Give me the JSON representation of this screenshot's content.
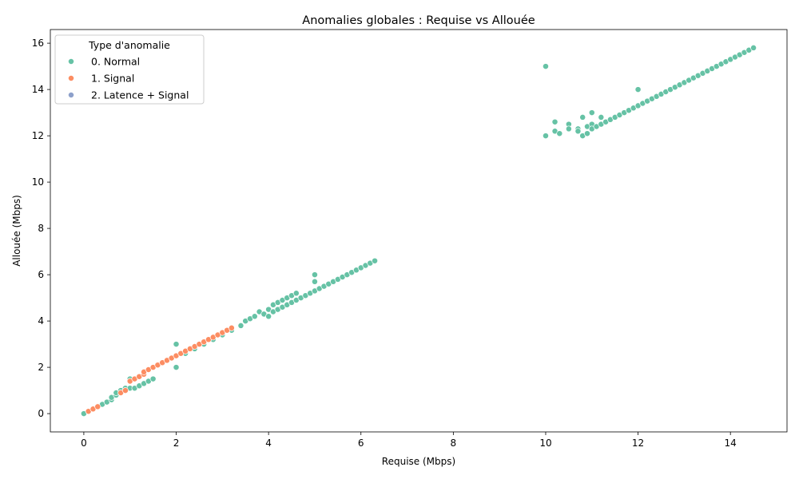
{
  "chart_data": {
    "type": "scatter",
    "title": "Anomalies globales : Requise vs Allouée",
    "xlabel": "Requise (Mbps)",
    "ylabel": "Allouée (Mbps)",
    "xlim": [
      -0.725,
      15.225
    ],
    "ylim": [
      -0.79,
      16.59
    ],
    "xticks": [
      0,
      2,
      4,
      6,
      8,
      10,
      12,
      14
    ],
    "yticks": [
      0,
      2,
      4,
      6,
      8,
      10,
      12,
      14,
      16
    ],
    "grid": false,
    "legend": {
      "title": "Type d'anomalie",
      "placement": "top-left",
      "entries": [
        {
          "label": "0. Normal",
          "color": "#66c2a5"
        },
        {
          "label": "1. Signal",
          "color": "#fc8d62"
        },
        {
          "label": "2. Latence + Signal",
          "color": "#8da0cb"
        }
      ]
    },
    "series": [
      {
        "name": "0. Normal",
        "color": "#66c2a5",
        "points": [
          [
            0,
            0
          ],
          [
            0.4,
            0.4
          ],
          [
            0.5,
            0.5
          ],
          [
            0.6,
            0.6
          ],
          [
            0.6,
            0.7
          ],
          [
            0.7,
            0.8
          ],
          [
            0.7,
            0.9
          ],
          [
            0.8,
            1.0
          ],
          [
            0.9,
            1.1
          ],
          [
            1.0,
            1.1
          ],
          [
            1.0,
            1.5
          ],
          [
            1.1,
            1.1
          ],
          [
            1.2,
            1.2
          ],
          [
            1.3,
            1.3
          ],
          [
            1.4,
            1.4
          ],
          [
            1.5,
            1.5
          ],
          [
            1.2,
            1.6
          ],
          [
            1.3,
            1.8
          ],
          [
            2.0,
            2.0
          ],
          [
            2.0,
            3.0
          ],
          [
            2.2,
            2.6
          ],
          [
            2.4,
            2.8
          ],
          [
            2.6,
            3.0
          ],
          [
            2.8,
            3.2
          ],
          [
            3.0,
            3.4
          ],
          [
            3.2,
            3.6
          ],
          [
            3.4,
            3.8
          ],
          [
            3.5,
            4.0
          ],
          [
            3.6,
            4.1
          ],
          [
            3.7,
            4.2
          ],
          [
            3.8,
            4.4
          ],
          [
            3.9,
            4.3
          ],
          [
            4.0,
            4.2
          ],
          [
            4.0,
            4.5
          ],
          [
            4.1,
            4.4
          ],
          [
            4.1,
            4.7
          ],
          [
            4.2,
            4.5
          ],
          [
            4.2,
            4.8
          ],
          [
            4.3,
            4.6
          ],
          [
            4.3,
            4.9
          ],
          [
            4.4,
            4.7
          ],
          [
            4.4,
            5.0
          ],
          [
            4.5,
            4.8
          ],
          [
            4.5,
            5.1
          ],
          [
            4.6,
            4.9
          ],
          [
            4.6,
            5.2
          ],
          [
            4.7,
            5.0
          ],
          [
            4.8,
            5.1
          ],
          [
            4.9,
            5.2
          ],
          [
            5.0,
            5.3
          ],
          [
            5.0,
            5.7
          ],
          [
            5.0,
            6.0
          ],
          [
            5.1,
            5.4
          ],
          [
            5.2,
            5.5
          ],
          [
            5.3,
            5.6
          ],
          [
            5.4,
            5.7
          ],
          [
            5.5,
            5.8
          ],
          [
            5.6,
            5.9
          ],
          [
            5.7,
            6.0
          ],
          [
            5.8,
            6.1
          ],
          [
            5.9,
            6.2
          ],
          [
            6.0,
            6.3
          ],
          [
            6.1,
            6.4
          ],
          [
            6.2,
            6.5
          ],
          [
            6.3,
            6.6
          ],
          [
            10.0,
            15.0
          ],
          [
            10.0,
            12.0
          ],
          [
            10.2,
            12.6
          ],
          [
            10.2,
            12.2
          ],
          [
            10.3,
            12.1
          ],
          [
            10.5,
            12.5
          ],
          [
            10.5,
            12.3
          ],
          [
            10.7,
            12.3
          ],
          [
            10.7,
            12.2
          ],
          [
            10.8,
            12.8
          ],
          [
            10.8,
            12.0
          ],
          [
            10.9,
            12.4
          ],
          [
            10.9,
            12.1
          ],
          [
            11.0,
            13.0
          ],
          [
            11.0,
            12.5
          ],
          [
            11.0,
            12.3
          ],
          [
            11.1,
            12.4
          ],
          [
            11.2,
            12.8
          ],
          [
            11.2,
            12.5
          ],
          [
            11.3,
            12.6
          ],
          [
            11.4,
            12.7
          ],
          [
            11.5,
            12.8
          ],
          [
            11.6,
            12.9
          ],
          [
            11.7,
            13.0
          ],
          [
            11.8,
            13.1
          ],
          [
            11.9,
            13.2
          ],
          [
            12.0,
            14.0
          ],
          [
            12.0,
            13.3
          ],
          [
            12.1,
            13.4
          ],
          [
            12.2,
            13.5
          ],
          [
            12.3,
            13.6
          ],
          [
            12.4,
            13.7
          ],
          [
            12.5,
            13.8
          ],
          [
            12.6,
            13.9
          ],
          [
            12.7,
            14.0
          ],
          [
            12.8,
            14.1
          ],
          [
            12.9,
            14.2
          ],
          [
            13.0,
            14.3
          ],
          [
            13.1,
            14.4
          ],
          [
            13.2,
            14.5
          ],
          [
            13.3,
            14.6
          ],
          [
            13.4,
            14.7
          ],
          [
            13.5,
            14.8
          ],
          [
            13.6,
            14.9
          ],
          [
            13.7,
            15.0
          ],
          [
            13.8,
            15.1
          ],
          [
            13.9,
            15.2
          ],
          [
            14.0,
            15.3
          ],
          [
            14.1,
            15.4
          ],
          [
            14.2,
            15.5
          ],
          [
            14.3,
            15.6
          ],
          [
            14.4,
            15.7
          ],
          [
            14.5,
            15.8
          ]
        ]
      },
      {
        "name": "1. Signal",
        "color": "#fc8d62",
        "points": [
          [
            0.1,
            0.1
          ],
          [
            0.2,
            0.2
          ],
          [
            0.3,
            0.3
          ],
          [
            0.8,
            0.9
          ],
          [
            0.9,
            1.0
          ],
          [
            1.0,
            1.4
          ],
          [
            1.1,
            1.5
          ],
          [
            1.2,
            1.6
          ],
          [
            1.3,
            1.7
          ],
          [
            1.3,
            1.8
          ],
          [
            1.4,
            1.9
          ],
          [
            1.5,
            2.0
          ],
          [
            1.6,
            2.1
          ],
          [
            1.7,
            2.2
          ],
          [
            1.8,
            2.3
          ],
          [
            1.9,
            2.4
          ],
          [
            2.0,
            2.5
          ],
          [
            2.1,
            2.6
          ],
          [
            2.2,
            2.7
          ],
          [
            2.3,
            2.8
          ],
          [
            2.4,
            2.9
          ],
          [
            2.5,
            3.0
          ],
          [
            2.6,
            3.1
          ],
          [
            2.7,
            3.2
          ],
          [
            2.8,
            3.3
          ],
          [
            2.9,
            3.4
          ],
          [
            3.0,
            3.5
          ],
          [
            3.1,
            3.6
          ],
          [
            3.2,
            3.7
          ]
        ]
      },
      {
        "name": "2. Latence + Signal",
        "color": "#8da0cb",
        "points": []
      }
    ]
  }
}
